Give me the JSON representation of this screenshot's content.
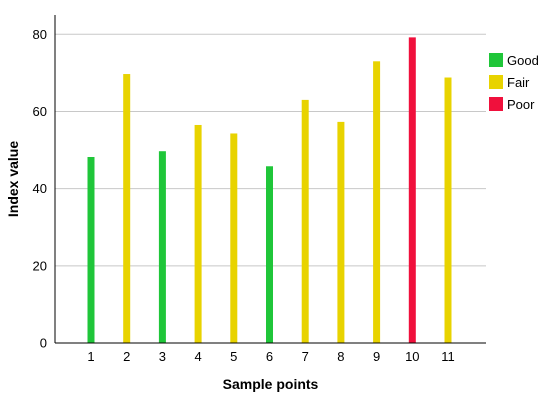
{
  "chart_data": {
    "type": "bar",
    "categories": [
      "1",
      "2",
      "3",
      "4",
      "5",
      "6",
      "7",
      "8",
      "9",
      "10",
      "11"
    ],
    "values": [
      48.2,
      69.7,
      49.7,
      56.5,
      54.3,
      45.8,
      63.0,
      57.3,
      73.0,
      79.2,
      68.8
    ],
    "classes": [
      "Good",
      "Fair",
      "Good",
      "Fair",
      "Fair",
      "Good",
      "Fair",
      "Fair",
      "Fair",
      "Poor",
      "Fair"
    ],
    "xlabel": "Sample points",
    "ylabel": "Index value",
    "ylim": [
      0,
      85
    ],
    "yticks": [
      0,
      20,
      40,
      60,
      80
    ],
    "grid": "horizontal",
    "legend": {
      "placement": "right",
      "entries": [
        {
          "name": "Good",
          "color": "#1fc639"
        },
        {
          "name": "Fair",
          "color": "#e8d300"
        },
        {
          "name": "Poor",
          "color": "#f0103c"
        }
      ]
    }
  }
}
